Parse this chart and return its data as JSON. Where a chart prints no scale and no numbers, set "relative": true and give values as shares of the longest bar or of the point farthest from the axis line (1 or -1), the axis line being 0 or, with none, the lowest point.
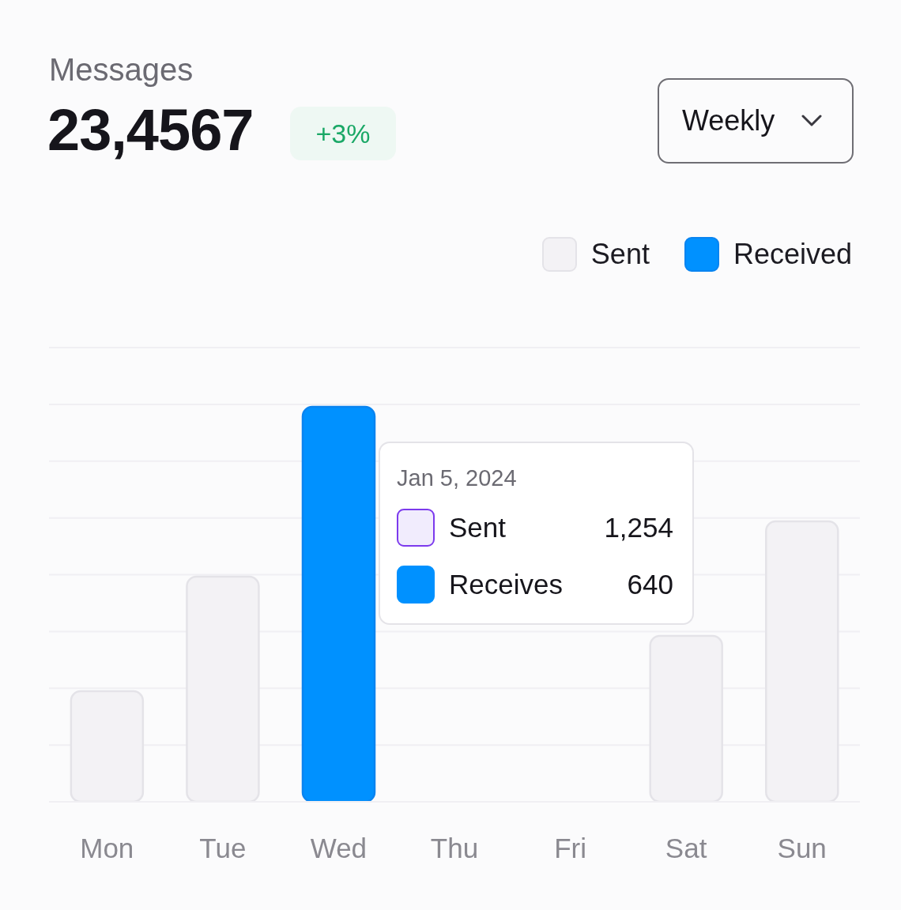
{
  "chart_data": {
    "type": "bar",
    "title": "Messages",
    "subtitle": "23,4567",
    "categories": [
      "Mon",
      "Tue",
      "Wed",
      "Thu",
      "Fri",
      "Sat",
      "Sun"
    ],
    "relative": true,
    "stacked": true,
    "grid": "y",
    "legend": "top right",
    "series": [
      {
        "name": "Sent",
        "color": "#f3f2f5",
        "values": [
          0.28,
          0.57,
          null,
          null,
          null,
          0.42,
          0.71
        ]
      },
      {
        "name": "Received",
        "color": "#0091ff",
        "values": [
          null,
          null,
          1,
          null,
          null,
          null,
          null
        ]
      }
    ],
    "annotations": [
      "+3%",
      "Weekly",
      "Jan 5, 2024",
      "Sent",
      "1,254",
      "Receives",
      "640"
    ]
  }
}
